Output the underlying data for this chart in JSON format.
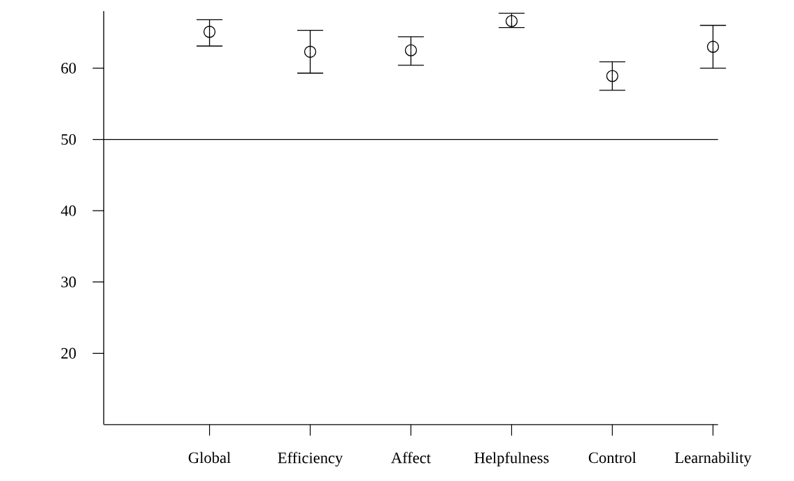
{
  "chart_data": {
    "type": "scatter",
    "categories": [
      "Global",
      "Efficiency",
      "Affect",
      "Helpfulness",
      "Control",
      "Learnability"
    ],
    "values": [
      65.1,
      62.3,
      62.5,
      66.6,
      58.9,
      63.0
    ],
    "errors": [
      [
        63.1,
        66.8
      ],
      [
        59.3,
        65.3
      ],
      [
        60.4,
        64.4
      ],
      [
        65.7,
        67.7
      ],
      [
        56.9,
        60.9
      ],
      [
        60.0,
        66.0
      ]
    ],
    "color": "#000000",
    "marker": "circle",
    "ylim": [
      10,
      68
    ],
    "yticks": [
      20,
      30,
      40,
      50,
      60
    ],
    "ref_lines": [
      {
        "axis": "y",
        "value": 50
      }
    ]
  }
}
